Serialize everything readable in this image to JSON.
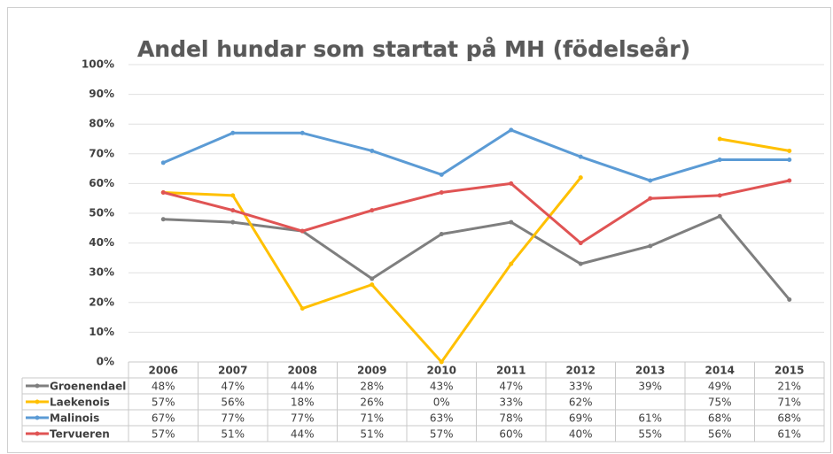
{
  "chart_data": {
    "type": "line",
    "title": "Andel hundar som startat på MH (födelseår)",
    "categories": [
      "2006",
      "2007",
      "2008",
      "2009",
      "2010",
      "2011",
      "2012",
      "2013",
      "2014",
      "2015"
    ],
    "series": [
      {
        "name": "Groenendael",
        "color": "#7f7f7f",
        "values": [
          48,
          47,
          44,
          28,
          43,
          47,
          33,
          39,
          49,
          21
        ],
        "value_labels": [
          "48%",
          "47%",
          "44%",
          "28%",
          "43%",
          "47%",
          "33%",
          "39%",
          "49%",
          "21%"
        ]
      },
      {
        "name": "Laekenois",
        "color": "#ffc000",
        "values": [
          57,
          56,
          18,
          26,
          0,
          33,
          62,
          null,
          75,
          71
        ],
        "value_labels": [
          "57%",
          "56%",
          "18%",
          "26%",
          "0%",
          "33%",
          "62%",
          null,
          "75%",
          "71%"
        ]
      },
      {
        "name": "Malinois",
        "color": "#5b9bd5",
        "values": [
          67,
          77,
          77,
          71,
          63,
          78,
          69,
          61,
          68,
          68
        ],
        "value_labels": [
          "67%",
          "77%",
          "77%",
          "71%",
          "63%",
          "78%",
          "69%",
          "61%",
          "68%",
          "68%"
        ]
      },
      {
        "name": "Tervueren",
        "color": "#e05454",
        "values": [
          57,
          51,
          44,
          51,
          57,
          60,
          40,
          55,
          56,
          61
        ],
        "value_labels": [
          "57%",
          "51%",
          "44%",
          "51%",
          "57%",
          "60%",
          "40%",
          "55%",
          "56%",
          "61%"
        ]
      }
    ],
    "ylim": [
      0,
      100
    ],
    "yticks": [
      {
        "value": 0,
        "label": "0%"
      },
      {
        "value": 10,
        "label": "10%"
      },
      {
        "value": 20,
        "label": "20%"
      },
      {
        "value": 30,
        "label": "30%"
      },
      {
        "value": 40,
        "label": "40%"
      },
      {
        "value": 50,
        "label": "50%"
      },
      {
        "value": 60,
        "label": "60%"
      },
      {
        "value": 70,
        "label": "70%"
      },
      {
        "value": 80,
        "label": "80%"
      },
      {
        "value": 90,
        "label": "90%"
      },
      {
        "value": 100,
        "label": "100%"
      }
    ],
    "grid": true
  }
}
